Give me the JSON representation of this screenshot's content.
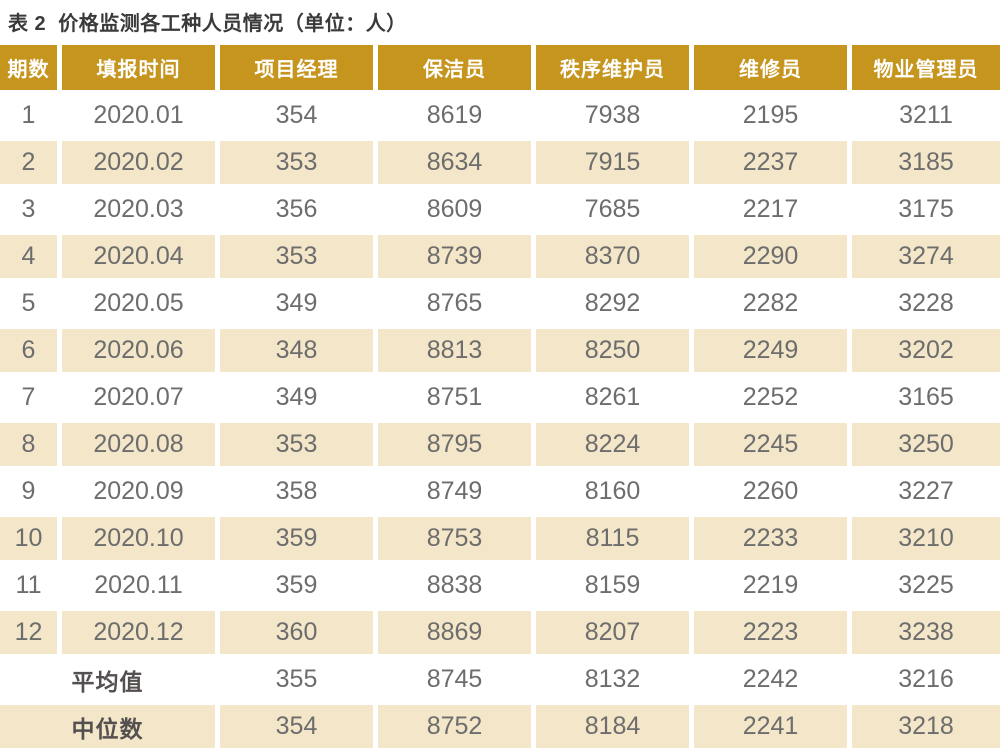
{
  "title": "表 2  价格监测各工种人员情况（单位：人）",
  "colors": {
    "header_bg": "#c6951e",
    "header_text": "#ffffff",
    "stripe_bg": "#f3e6c9",
    "data_text": "#6d6d6d",
    "title_text": "#3a3a3a"
  },
  "chart_data": {
    "type": "table",
    "title": "表 2  价格监测各工种人员情况（单位：人）",
    "columns": [
      "期数",
      "填报时间",
      "项目经理",
      "保洁员",
      "秩序维护员",
      "维修员",
      "物业管理员"
    ],
    "rows": [
      [
        "1",
        "2020.01",
        "354",
        "8619",
        "7938",
        "2195",
        "3211"
      ],
      [
        "2",
        "2020.02",
        "353",
        "8634",
        "7915",
        "2237",
        "3185"
      ],
      [
        "3",
        "2020.03",
        "356",
        "8609",
        "7685",
        "2217",
        "3175"
      ],
      [
        "4",
        "2020.04",
        "353",
        "8739",
        "8370",
        "2290",
        "3274"
      ],
      [
        "5",
        "2020.05",
        "349",
        "8765",
        "8292",
        "2282",
        "3228"
      ],
      [
        "6",
        "2020.06",
        "348",
        "8813",
        "8250",
        "2249",
        "3202"
      ],
      [
        "7",
        "2020.07",
        "349",
        "8751",
        "8261",
        "2252",
        "3165"
      ],
      [
        "8",
        "2020.08",
        "353",
        "8795",
        "8224",
        "2245",
        "3250"
      ],
      [
        "9",
        "2020.09",
        "358",
        "8749",
        "8160",
        "2260",
        "3227"
      ],
      [
        "10",
        "2020.10",
        "359",
        "8753",
        "8115",
        "2233",
        "3210"
      ],
      [
        "11",
        "2020.11",
        "359",
        "8838",
        "8159",
        "2219",
        "3225"
      ],
      [
        "12",
        "2020.12",
        "360",
        "8869",
        "8207",
        "2223",
        "3238"
      ]
    ],
    "summary_rows": [
      {
        "label": "平均值",
        "values": [
          "355",
          "8745",
          "8132",
          "2242",
          "3216"
        ]
      },
      {
        "label": "中位数",
        "values": [
          "354",
          "8752",
          "8184",
          "2241",
          "3218"
        ]
      }
    ]
  }
}
